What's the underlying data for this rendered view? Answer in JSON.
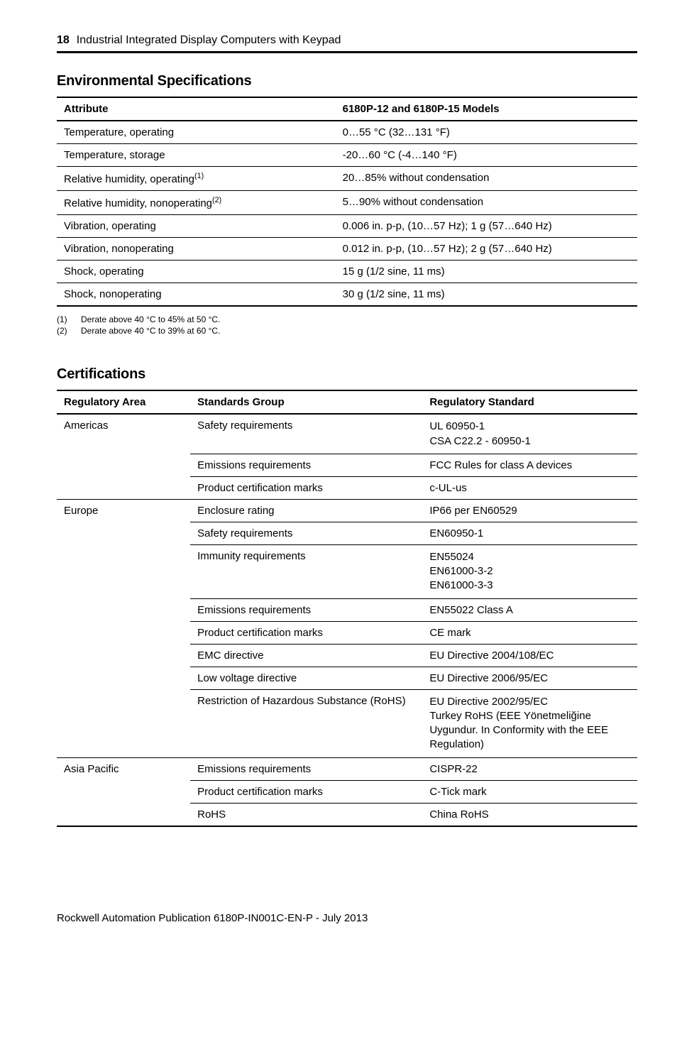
{
  "header": {
    "page_number": "18",
    "doc_title": "Industrial Integrated Display Computers with Keypad"
  },
  "env": {
    "heading": "Environmental Specifications",
    "columns": [
      "Attribute",
      "6180P-12 and 6180P-15 Models"
    ],
    "rows": [
      {
        "attr": "Temperature, operating",
        "val": "0…55 °C (32…131 °F)"
      },
      {
        "attr": "Temperature, storage",
        "val": "-20…60 °C (-4…140 °F)"
      },
      {
        "attr_base": "Relative humidity, operating",
        "attr_sup": "(1)",
        "val": "20…85% without condensation"
      },
      {
        "attr_base": "Relative humidity, nonoperating",
        "attr_sup": "(2)",
        "val": "5…90% without condensation"
      },
      {
        "attr": "Vibration, operating",
        "val": "0.006 in. p-p, (10…57 Hz); 1 g (57…640 Hz)"
      },
      {
        "attr": "Vibration, nonoperating",
        "val": "0.012 in. p-p, (10…57 Hz); 2 g (57…640 Hz)"
      },
      {
        "attr": "Shock, operating",
        "val": "15 g (1/2 sine, 11 ms)"
      },
      {
        "attr": "Shock, nonoperating",
        "val": "30 g (1/2 sine, 11 ms)"
      }
    ],
    "footnotes": [
      {
        "num": "(1)",
        "text": "Derate above 40 °C to 45% at 50 °C."
      },
      {
        "num": "(2)",
        "text": "Derate above 40 °C to 39% at 60 °C."
      }
    ]
  },
  "cert": {
    "heading": "Certifications",
    "columns": [
      "Regulatory Area",
      "Standards Group",
      "Regulatory Standard"
    ],
    "americas": {
      "region": "Americas",
      "rows": [
        {
          "group": "Safety requirements",
          "std": "UL 60950-1\nCSA C22.2 - 60950-1"
        },
        {
          "group": "Emissions requirements",
          "std": "FCC Rules for class A devices"
        },
        {
          "group": "Product certification marks",
          "std": "c-UL-us"
        }
      ]
    },
    "europe": {
      "region": "Europe",
      "rows": [
        {
          "group": "Enclosure rating",
          "std": "IP66 per EN60529"
        },
        {
          "group": "Safety requirements",
          "std": "EN60950-1"
        },
        {
          "group": "Immunity requirements",
          "std": "EN55024\nEN61000-3-2\nEN61000-3-3"
        },
        {
          "group": "Emissions requirements",
          "std": "EN55022 Class A"
        },
        {
          "group": "Product certification marks",
          "std": "CE mark"
        },
        {
          "group": "EMC directive",
          "std": "EU Directive 2004/108/EC"
        },
        {
          "group": "Low voltage directive",
          "std": "EU Directive 2006/95/EC"
        },
        {
          "group": "Restriction of Hazardous Substance (RoHS)",
          "std": "EU Directive 2002/95/EC\nTurkey RoHS (EEE Yönetmeliğine Uygundur. In Conformity with the EEE Regulation)"
        }
      ]
    },
    "asia": {
      "region": "Asia Pacific",
      "rows": [
        {
          "group": "Emissions requirements",
          "std": "CISPR-22"
        },
        {
          "group": "Product certification marks",
          "std": "C-Tick mark"
        },
        {
          "group": "RoHS",
          "std": "China RoHS"
        }
      ]
    }
  },
  "footer": {
    "publication": "Rockwell Automation Publication 6180P-IN001C-EN-P - July 2013"
  }
}
